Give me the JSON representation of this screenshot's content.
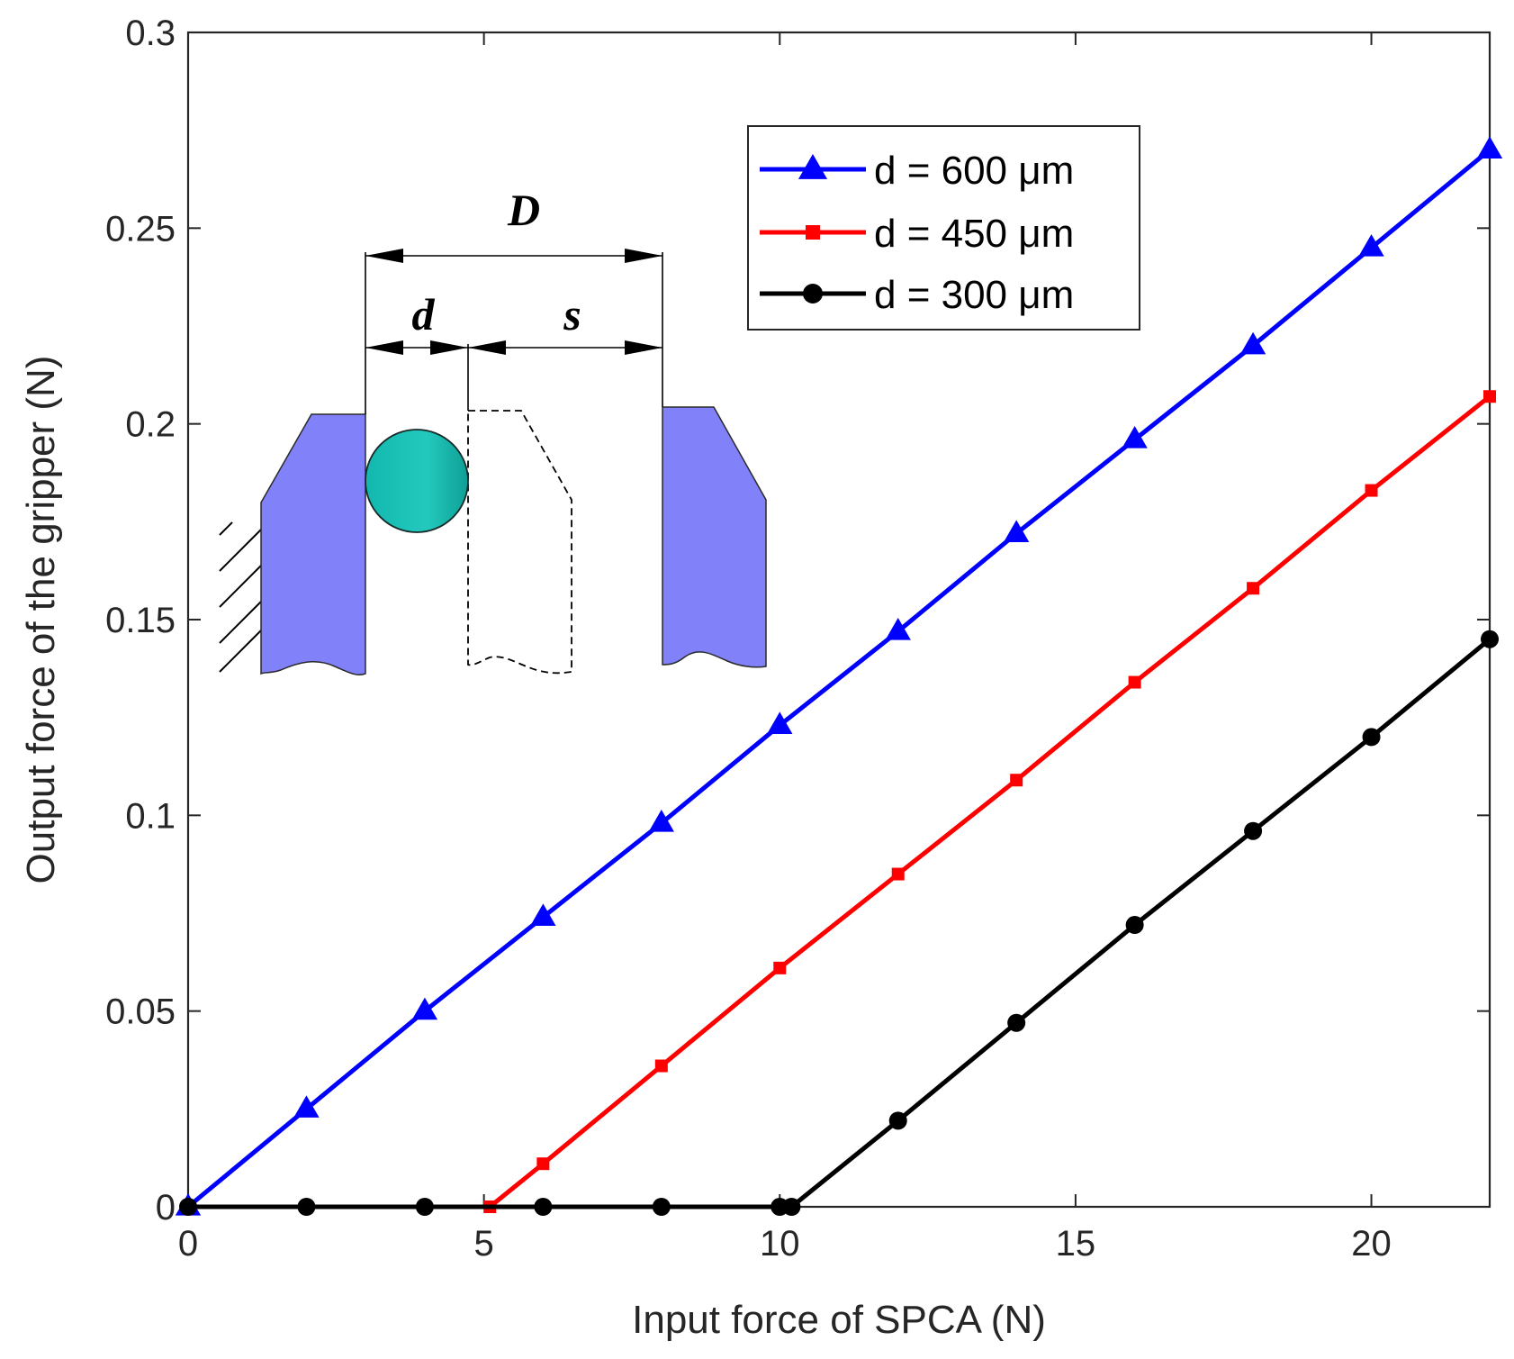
{
  "chart_data": {
    "type": "line",
    "title": "",
    "xlabel": "Input force of SPCA (N)",
    "ylabel": "Output force of the gripper (N)",
    "xlim": [
      0,
      22
    ],
    "ylim": [
      0,
      0.3
    ],
    "xticks": [
      0,
      5,
      10,
      15,
      20
    ],
    "xtick_labels": [
      "0",
      "5",
      "10",
      "15",
      "20"
    ],
    "yticks": [
      0,
      0.05,
      0.1,
      0.15,
      0.2,
      0.25,
      0.3
    ],
    "ytick_labels": [
      "0",
      "0.05",
      "0.1",
      "0.15",
      "0.2",
      "0.25",
      "0.3"
    ],
    "grid": false,
    "legend_position": "top-right",
    "series": [
      {
        "name": "d = 600 μm",
        "color": "#0000ff",
        "marker": "triangle",
        "x": [
          0,
          2,
          4,
          6,
          8,
          10,
          12,
          14,
          16,
          18,
          20,
          22
        ],
        "y": [
          0,
          0.025,
          0.05,
          0.074,
          0.098,
          0.123,
          0.147,
          0.172,
          0.196,
          0.22,
          0.245,
          0.27
        ]
      },
      {
        "name": "d = 450 μm",
        "color": "#ff0000",
        "marker": "square",
        "x": [
          5.1,
          6,
          8,
          10,
          12,
          14,
          16,
          18,
          20,
          22
        ],
        "y": [
          0,
          0.011,
          0.036,
          0.061,
          0.085,
          0.109,
          0.134,
          0.158,
          0.183,
          0.207
        ]
      },
      {
        "name": "d = 300 μm",
        "color": "#000000",
        "marker": "circle",
        "x": [
          0,
          2,
          4,
          6,
          8,
          10,
          10.2,
          12,
          14,
          16,
          18,
          20,
          22
        ],
        "y": [
          0,
          0,
          0,
          0,
          0,
          0,
          0,
          0.022,
          0.047,
          0.072,
          0.096,
          0.12,
          0.145
        ]
      }
    ],
    "inset_diagram": {
      "labels": {
        "total_gap": "D",
        "object_diameter": "d",
        "stroke": "s"
      },
      "object_color": "#1fc4b8",
      "jaw_color": "#8080ff"
    }
  }
}
